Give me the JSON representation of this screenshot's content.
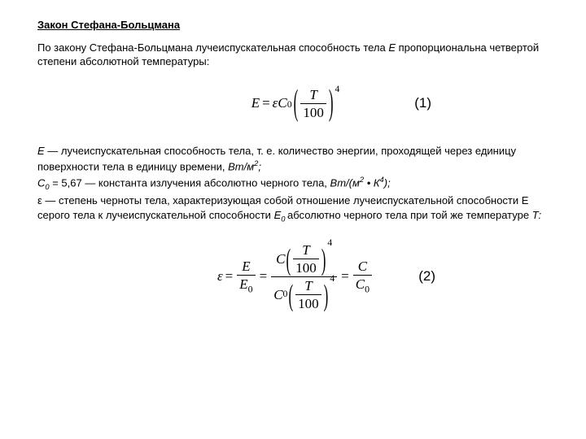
{
  "heading": "Закон Стефана-Больцмана",
  "intro_a": "По закону Стефана-Больцмана лучеиспускательная способность тела ",
  "intro_e": "Е",
  "intro_b": " пропорциональна четвертой степени абсолютной температуры:",
  "eq1": {
    "E": "E",
    "eq": "=",
    "eps": "ε",
    "C": "C",
    "sub0": "0",
    "T": "T",
    "hundred": "100",
    "pow": "4",
    "label": "(1)"
  },
  "defs": {
    "l1a": "Е",
    "l1b": " — лучеиспускательная способность тела, т. е. количество энергии, проходящей через единицу",
    "l2a": "поверхности тела в единицу времени, ",
    "l2b": "Вт/м",
    "l2c": "2",
    "l2d": ";",
    "l3a": "С",
    "l3b": "0",
    "l3c": " = 5,67 — константа излучения абсолютно черного тела, ",
    "l3d": "Вт/(м",
    "l3e": "2",
    "l3f": " • К",
    "l3g": "4",
    "l3h": ");",
    "l4": "ε — степень черноты тела, характеризующая собой отношение лучеиспускательной способности Е",
    "l5a": "серого тела к лучеиспускательной способности ",
    "l5b": "Е",
    "l5c": "0 ",
    "l5d": "абсолютно черного тела при той же температуре ",
    "l5e": "Т:"
  },
  "eq2": {
    "eps": "ε",
    "eq": "=",
    "E": "E",
    "E0": "E",
    "s0": "0",
    "C": "C",
    "C0": "C",
    "T": "T",
    "hundred": "100",
    "pow": "4",
    "label": "(2)"
  }
}
